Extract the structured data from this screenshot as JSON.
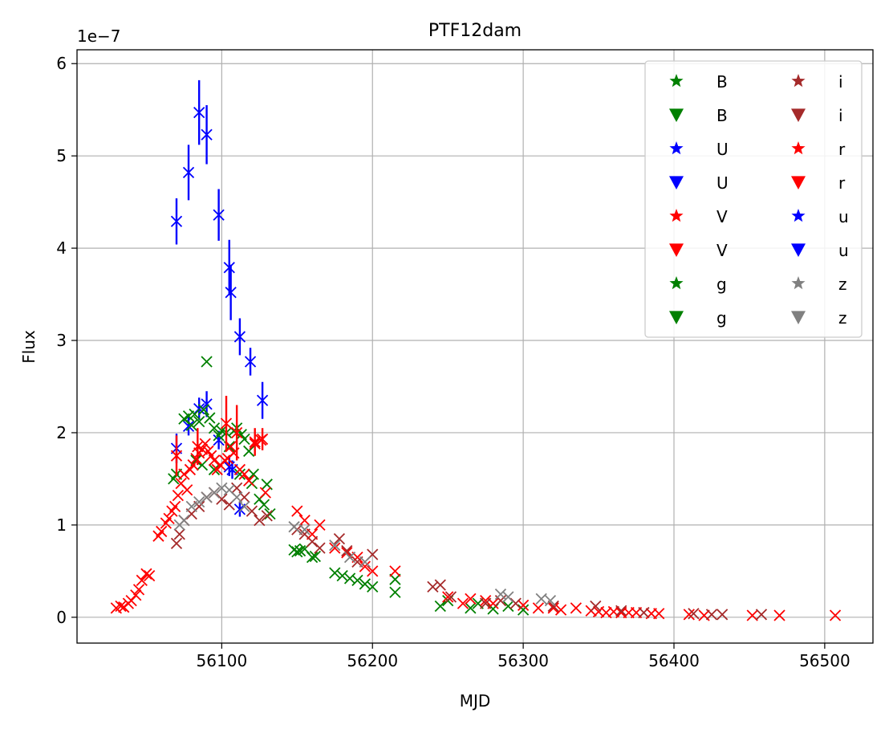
{
  "chart_data": {
    "type": "scatter",
    "title": "PTF12dam",
    "xlabel": "MJD",
    "ylabel": "Flux",
    "y_scale_label": "1e−7",
    "xlim": [
      56004,
      56532
    ],
    "ylim": [
      -0.28,
      6.15
    ],
    "x_ticks": [
      56100,
      56200,
      56300,
      56400,
      56500
    ],
    "x_tick_labels": [
      "56100",
      "56200",
      "56300",
      "56400",
      "56500"
    ],
    "y_ticks": [
      0,
      1,
      2,
      3,
      4,
      5,
      6
    ],
    "y_tick_labels": [
      "0",
      "1",
      "2",
      "3",
      "4",
      "5",
      "6"
    ],
    "grid": true,
    "legend_position": "top-right",
    "legend_columns": 2,
    "legend": [
      {
        "label": "B",
        "marker": "star",
        "color": "#008000"
      },
      {
        "label": "B",
        "marker": "triangle-down",
        "color": "#008000"
      },
      {
        "label": "U",
        "marker": "star",
        "color": "#0000ff"
      },
      {
        "label": "U",
        "marker": "triangle-down",
        "color": "#0000ff"
      },
      {
        "label": "V",
        "marker": "star",
        "color": "#ff0000"
      },
      {
        "label": "V",
        "marker": "triangle-down",
        "color": "#ff0000"
      },
      {
        "label": "g",
        "marker": "star",
        "color": "#008000"
      },
      {
        "label": "g",
        "marker": "triangle-down",
        "color": "#008000"
      },
      {
        "label": "i",
        "marker": "star",
        "color": "#a52a2a"
      },
      {
        "label": "i",
        "marker": "triangle-down",
        "color": "#a52a2a"
      },
      {
        "label": "r",
        "marker": "star",
        "color": "#ff0000"
      },
      {
        "label": "r",
        "marker": "triangle-down",
        "color": "#ff0000"
      },
      {
        "label": "u",
        "marker": "star",
        "color": "#0000ff"
      },
      {
        "label": "u",
        "marker": "triangle-down",
        "color": "#0000ff"
      },
      {
        "label": "z",
        "marker": "star",
        "color": "#808080"
      },
      {
        "label": "z",
        "marker": "triangle-down",
        "color": "#808080"
      }
    ],
    "series": [
      {
        "color": "#0000ff",
        "marker": "x",
        "points": [
          [
            56070,
            4.29,
            0.25
          ],
          [
            56078,
            4.82,
            0.3
          ],
          [
            56085,
            5.47,
            0.35
          ],
          [
            56090,
            5.23,
            0.32
          ],
          [
            56098,
            4.36,
            0.28
          ],
          [
            56105,
            3.79,
            0.3
          ],
          [
            56106,
            3.52,
            0.3
          ],
          [
            56112,
            3.04,
            0.2
          ],
          [
            56119,
            2.77,
            0.15
          ],
          [
            56127,
            2.35,
            0.2
          ],
          [
            56070,
            1.83,
            0.16
          ],
          [
            56078,
            2.07,
            0.1
          ],
          [
            56085,
            2.26,
            0.12
          ],
          [
            56090,
            2.31,
            0.14
          ],
          [
            56098,
            1.92,
            0.1
          ],
          [
            56105,
            1.63,
            0.1
          ],
          [
            56107,
            1.6,
            0.1
          ],
          [
            56112,
            1.17,
            0.08
          ]
        ]
      },
      {
        "color": "#008000",
        "marker": "x",
        "points": [
          [
            56068,
            1.5
          ],
          [
            56070,
            1.55
          ],
          [
            56075,
            2.15
          ],
          [
            56078,
            2.18
          ],
          [
            56080,
            2.08
          ],
          [
            56082,
            2.2
          ],
          [
            56085,
            2.12
          ],
          [
            56088,
            2.25
          ],
          [
            56090,
            2.77
          ],
          [
            56092,
            2.16
          ],
          [
            56095,
            2.05
          ],
          [
            56098,
            1.97
          ],
          [
            56100,
            2.02
          ],
          [
            56103,
            2.0
          ],
          [
            56105,
            1.85
          ],
          [
            56108,
            2.02
          ],
          [
            56110,
            2.05
          ],
          [
            56113,
            1.98
          ],
          [
            56115,
            1.93
          ],
          [
            56118,
            1.8
          ],
          [
            56121,
            1.55
          ],
          [
            56125,
            1.28
          ],
          [
            56128,
            1.22
          ],
          [
            56130,
            1.44
          ],
          [
            56132,
            1.12
          ],
          [
            56148,
            0.73
          ],
          [
            56150,
            0.71
          ],
          [
            56152,
            0.72
          ],
          [
            56155,
            0.74
          ],
          [
            56160,
            0.65
          ],
          [
            56162,
            0.66
          ],
          [
            56175,
            0.48
          ],
          [
            56180,
            0.45
          ],
          [
            56185,
            0.42
          ],
          [
            56190,
            0.4
          ],
          [
            56195,
            0.36
          ],
          [
            56200,
            0.33
          ],
          [
            56215,
            0.27
          ],
          [
            56215,
            0.41
          ],
          [
            56245,
            0.12
          ],
          [
            56250,
            0.18
          ],
          [
            56265,
            0.1
          ],
          [
            56270,
            0.15
          ],
          [
            56280,
            0.09
          ],
          [
            56290,
            0.12
          ],
          [
            56300,
            0.08
          ],
          [
            56083,
            1.7
          ],
          [
            56087,
            1.65
          ],
          [
            56095,
            1.6
          ],
          [
            56112,
            1.55
          ],
          [
            56120,
            1.45
          ]
        ]
      },
      {
        "color": "#ff0000",
        "marker": "x",
        "points": [
          [
            56030,
            0.1
          ],
          [
            56033,
            0.12
          ],
          [
            56035,
            0.11
          ],
          [
            56038,
            0.15
          ],
          [
            56040,
            0.18
          ],
          [
            56043,
            0.24
          ],
          [
            56045,
            0.3
          ],
          [
            56047,
            0.4
          ],
          [
            56050,
            0.47
          ],
          [
            56052,
            0.45
          ],
          [
            56058,
            0.88
          ],
          [
            56060,
            0.93
          ],
          [
            56063,
            1.02
          ],
          [
            56065,
            1.07
          ],
          [
            56067,
            1.15
          ],
          [
            56069,
            1.2
          ],
          [
            56071,
            1.32
          ],
          [
            56073,
            1.45
          ],
          [
            56075,
            1.55
          ],
          [
            56077,
            1.38
          ],
          [
            56079,
            1.6
          ],
          [
            56081,
            1.65
          ],
          [
            56083,
            1.72
          ],
          [
            56085,
            1.78
          ],
          [
            56087,
            1.82
          ],
          [
            56089,
            1.88
          ],
          [
            56091,
            1.8
          ],
          [
            56093,
            1.75
          ],
          [
            56095,
            1.7
          ],
          [
            56097,
            1.6
          ],
          [
            56099,
            1.65
          ],
          [
            56102,
            1.7
          ],
          [
            56104,
            1.72
          ],
          [
            56106,
            1.85
          ],
          [
            56108,
            1.78
          ],
          [
            56112,
            1.6
          ],
          [
            56115,
            1.55
          ],
          [
            56118,
            1.48
          ],
          [
            56122,
            1.88
          ],
          [
            56126,
            1.92
          ],
          [
            56129,
            1.35
          ],
          [
            56150,
            1.15
          ],
          [
            56155,
            1.05
          ],
          [
            56160,
            0.9
          ],
          [
            56165,
            1.0
          ],
          [
            56175,
            0.75
          ],
          [
            56183,
            0.7
          ],
          [
            56190,
            0.65
          ],
          [
            56195,
            0.55
          ],
          [
            56200,
            0.5
          ],
          [
            56215,
            0.5
          ],
          [
            56250,
            0.22
          ],
          [
            56260,
            0.15
          ],
          [
            56265,
            0.2
          ],
          [
            56275,
            0.18
          ],
          [
            56280,
            0.15
          ],
          [
            56300,
            0.13
          ],
          [
            56310,
            0.1
          ],
          [
            56320,
            0.1
          ],
          [
            56325,
            0.08
          ],
          [
            56335,
            0.1
          ],
          [
            56345,
            0.07
          ],
          [
            56350,
            0.06
          ],
          [
            56355,
            0.05
          ],
          [
            56360,
            0.06
          ],
          [
            56365,
            0.05
          ],
          [
            56370,
            0.05
          ],
          [
            56375,
            0.05
          ],
          [
            56385,
            0.04
          ],
          [
            56390,
            0.04
          ],
          [
            56410,
            0.03
          ],
          [
            56420,
            0.02
          ],
          [
            56452,
            0.02
          ],
          [
            56470,
            0.02
          ],
          [
            56507,
            0.02
          ]
        ],
        "err_points": [
          [
            56070,
            1.75,
            0.22
          ],
          [
            56084,
            1.85,
            0.2
          ],
          [
            56103,
            2.1,
            0.3
          ],
          [
            56110,
            2.0,
            0.3
          ],
          [
            56122,
            1.9,
            0.15
          ],
          [
            56127,
            1.93,
            0.12
          ]
        ]
      },
      {
        "color": "#a52a2a",
        "marker": "x",
        "points": [
          [
            56070,
            0.8
          ],
          [
            56072,
            0.9
          ],
          [
            56075,
            1.05
          ],
          [
            56080,
            1.12
          ],
          [
            56085,
            1.2
          ],
          [
            56090,
            1.3
          ],
          [
            56095,
            1.35
          ],
          [
            56100,
            1.28
          ],
          [
            56105,
            1.22
          ],
          [
            56110,
            1.4
          ],
          [
            56115,
            1.3
          ],
          [
            56120,
            1.15
          ],
          [
            56125,
            1.05
          ],
          [
            56130,
            1.1
          ],
          [
            56150,
            0.95
          ],
          [
            56155,
            0.9
          ],
          [
            56160,
            0.82
          ],
          [
            56165,
            0.75
          ],
          [
            56178,
            0.85
          ],
          [
            56183,
            0.72
          ],
          [
            56190,
            0.6
          ],
          [
            56200,
            0.68
          ],
          [
            56240,
            0.33
          ],
          [
            56245,
            0.35
          ],
          [
            56252,
            0.22
          ],
          [
            56275,
            0.15
          ],
          [
            56285,
            0.18
          ],
          [
            56295,
            0.15
          ],
          [
            56320,
            0.12
          ],
          [
            56348,
            0.12
          ],
          [
            56365,
            0.07
          ],
          [
            56380,
            0.05
          ],
          [
            56413,
            0.04
          ],
          [
            56425,
            0.03
          ],
          [
            56432,
            0.03
          ],
          [
            56458,
            0.03
          ]
        ]
      },
      {
        "color": "#808080",
        "marker": "x",
        "points": [
          [
            56072,
            1.0
          ],
          [
            56075,
            1.05
          ],
          [
            56080,
            1.2
          ],
          [
            56085,
            1.25
          ],
          [
            56090,
            1.3
          ],
          [
            56095,
            1.35
          ],
          [
            56100,
            1.4
          ],
          [
            56105,
            1.38
          ],
          [
            56110,
            1.3
          ],
          [
            56115,
            1.2
          ],
          [
            56148,
            0.98
          ],
          [
            56155,
            0.95
          ],
          [
            56175,
            0.78
          ],
          [
            56185,
            0.65
          ],
          [
            56195,
            0.6
          ],
          [
            56285,
            0.25
          ],
          [
            56290,
            0.22
          ],
          [
            56312,
            0.2
          ],
          [
            56318,
            0.18
          ]
        ]
      }
    ]
  }
}
